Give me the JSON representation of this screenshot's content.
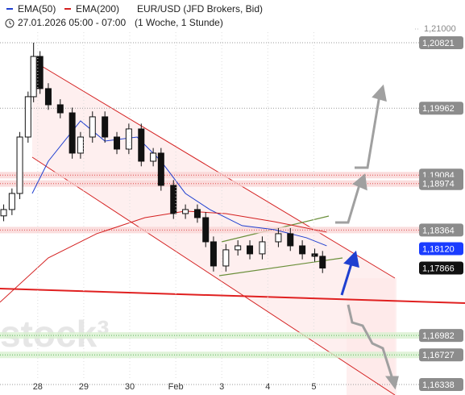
{
  "chart_data": {
    "type": "candlestick",
    "title": "EUR/USD (JFD Brokers, Bid)",
    "subtitle": "27.01.2026 05:00 - 07:00",
    "period": "(1 Woche, 1 Stunde)",
    "watermark": "stock³",
    "xlim": [
      -0.82,
      8.2
    ],
    "ylim": [
      1.16201,
      1.21381
    ],
    "xticks": [
      {
        "value": 0,
        "label": "28"
      },
      {
        "value": 1,
        "label": "29"
      },
      {
        "value": 2,
        "label": "30"
      },
      {
        "value": 3,
        "label": "Feb"
      },
      {
        "value": 4,
        "label": "3"
      },
      {
        "value": 5,
        "label": "4"
      },
      {
        "value": 6,
        "label": "5"
      }
    ],
    "yticks": [
      {
        "value": 1.21,
        "label": "1,21000"
      }
    ],
    "candles": {
      "x": [
        -0.74,
        -0.56,
        -0.39,
        -0.21,
        -0.09,
        0.05,
        0.23,
        0.49,
        0.75,
        0.93,
        1.19,
        1.46,
        1.72,
        1.98,
        2.25,
        2.51,
        2.68,
        2.95,
        3.21,
        3.47,
        3.65,
        3.82,
        4.09,
        4.35,
        4.61,
        4.88,
        5.23,
        5.49,
        5.75,
        6.02,
        6.19
      ],
      "open": [
        1.1855,
        1.18633,
        1.18844,
        1.19584,
        1.20113,
        1.20641,
        1.20219,
        1.20007,
        1.19901,
        1.19373,
        1.19584,
        1.19849,
        1.19584,
        1.19426,
        1.1969,
        1.19267,
        1.19373,
        1.1895,
        1.1858,
        1.18633,
        1.18527,
        1.1821,
        1.17893,
        1.18105,
        1.18157,
        1.18052,
        1.1821,
        1.18316,
        1.18157,
        1.18052,
        1.1802
      ],
      "high": [
        1.187,
        1.1891,
        1.1965,
        1.2018,
        1.20821,
        1.2071,
        1.2029,
        1.2008,
        1.1997,
        1.1965,
        1.1992,
        1.1992,
        1.1965,
        1.1976,
        1.1976,
        1.1944,
        1.1944,
        1.1902,
        1.187,
        1.187,
        1.186,
        1.1828,
        1.1818,
        1.1823,
        1.1823,
        1.1828,
        1.1839,
        1.1839,
        1.1823,
        1.1812,
        1.1809
      ],
      "low": [
        1.1848,
        1.1856,
        1.1877,
        1.1951,
        1.2004,
        1.2015,
        1.1994,
        1.1983,
        1.193,
        1.193,
        1.1951,
        1.1951,
        1.1936,
        1.1936,
        1.192,
        1.192,
        1.1888,
        1.1851,
        1.1851,
        1.1846,
        1.1814,
        1.1782,
        1.1782,
        1.1803,
        1.1798,
        1.1798,
        1.1814,
        1.1809,
        1.1798,
        1.1795,
        1.178
      ],
      "close": [
        1.18633,
        1.18844,
        1.19584,
        1.20113,
        1.20641,
        1.20219,
        1.20007,
        1.19901,
        1.19373,
        1.19584,
        1.19849,
        1.19584,
        1.19426,
        1.1969,
        1.19267,
        1.19373,
        1.1895,
        1.1858,
        1.18633,
        1.18527,
        1.1821,
        1.17893,
        1.18105,
        1.18157,
        1.18052,
        1.1821,
        1.18316,
        1.18157,
        1.18052,
        1.1802,
        1.17866
      ]
    },
    "series": [
      {
        "name": "EMA(50)",
        "color": "#1f3fd0",
        "x": [
          -0.12,
          0.23,
          0.93,
          1.46,
          2.16,
          2.68,
          3.21,
          3.74,
          4.44,
          5.14,
          5.84,
          6.28
        ],
        "values": [
          1.18844,
          1.19267,
          1.19796,
          1.19531,
          1.19584,
          1.19267,
          1.18844,
          1.18633,
          1.18422,
          1.18369,
          1.18263,
          1.18157
        ]
      },
      {
        "name": "EMA(200)",
        "color": "#d42020",
        "x": [
          -0.82,
          0.23,
          1.28,
          2.33,
          3.21,
          4.09,
          5.14,
          6.28
        ],
        "values": [
          1.17418,
          1.17999,
          1.18316,
          1.18527,
          1.18612,
          1.1858,
          1.18474,
          1.18337
        ]
      }
    ],
    "levels": [
      {
        "value": 1.20821,
        "label": "1,20821",
        "kind": "dotted"
      },
      {
        "value": 1.19962,
        "label": "1,19962",
        "kind": "dotted"
      },
      {
        "value": 1.19084,
        "label": "1,19084",
        "kind": "red"
      },
      {
        "value": 1.18974,
        "label": "1,18974",
        "kind": "red"
      },
      {
        "value": 1.18364,
        "label": "1,18364",
        "kind": "red"
      },
      {
        "value": 1.1812,
        "label": "1,18120",
        "kind": "blue"
      },
      {
        "value": 1.17866,
        "label": "1,17866",
        "kind": "black"
      },
      {
        "value": 1.16982,
        "label": "1,16982",
        "kind": "green"
      },
      {
        "value": 1.16727,
        "label": "1,16727",
        "kind": "green"
      },
      {
        "value": 1.16338,
        "label": "1,16338",
        "kind": "dotted"
      }
    ]
  }
}
